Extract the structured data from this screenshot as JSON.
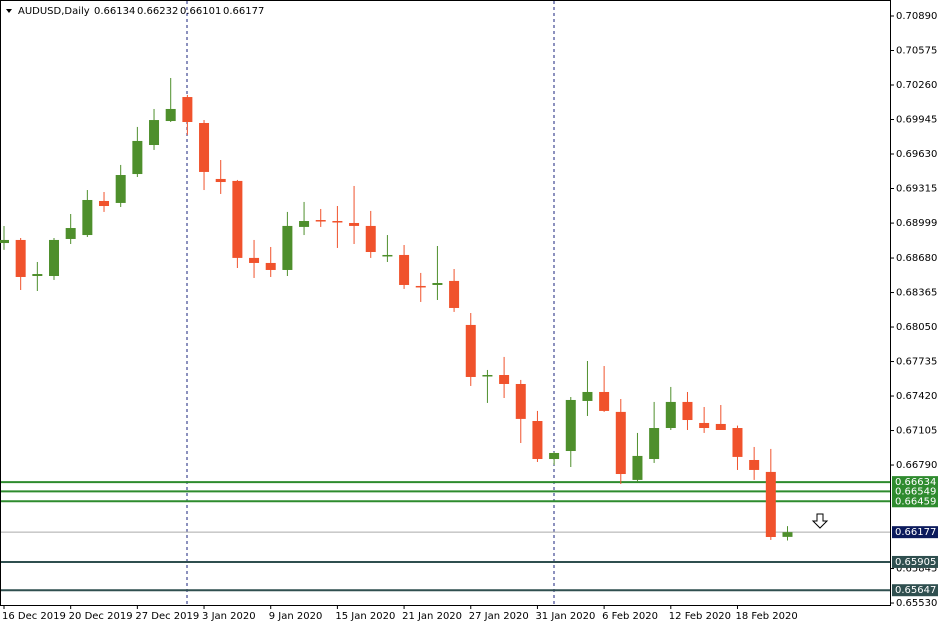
{
  "chart_data": {
    "type": "candlestick",
    "title": "AUDUSD,Daily",
    "header_values": [
      0.66134,
      0.66232,
      0.66101,
      0.66177
    ],
    "categories": [
      "16 Dec 2019",
      null,
      null,
      null,
      "20 Dec 2019",
      null,
      null,
      null,
      "27 Dec 2019",
      null,
      null,
      null,
      "3 Jan 2020",
      null,
      null,
      null,
      "9 Jan 2020",
      null,
      null,
      null,
      "15 Jan 2020",
      null,
      null,
      null,
      "21 Jan 2020",
      null,
      null,
      null,
      "27 Jan 2020",
      null,
      null,
      null,
      "31 Jan 2020",
      null,
      null,
      null,
      "6 Feb 2020",
      null,
      null,
      null,
      "12 Feb 2020",
      null,
      null,
      null,
      "18 Feb 2020",
      null,
      null,
      null
    ],
    "open": [
      0.68817,
      0.68845,
      0.68516,
      0.68516,
      0.68854,
      0.6889,
      0.69201,
      0.69183,
      0.69447,
      0.69712,
      0.69931,
      0.7015,
      0.69913,
      0.69402,
      0.69384,
      0.68681,
      0.68635,
      0.68571,
      0.68964,
      0.69027,
      0.69018,
      0.69,
      0.68973,
      0.68699,
      0.68708,
      0.68425,
      0.68434,
      0.68471,
      0.68069,
      0.67603,
      0.67612,
      0.6753,
      0.67192,
      0.66845,
      0.66918,
      0.67375,
      0.67457,
      0.67275,
      0.66654,
      0.66845,
      0.67128,
      0.67366,
      0.67174,
      0.67165,
      0.67128,
      0.66836,
      0.66727,
      0.66134
    ],
    "high": [
      0.68973,
      0.68863,
      0.68644,
      0.68863,
      0.69082,
      0.69301,
      0.69283,
      0.6953,
      0.69877,
      0.70041,
      0.70324,
      0.70169,
      0.6994,
      0.69575,
      0.69393,
      0.68845,
      0.68781,
      0.69101,
      0.69192,
      0.69128,
      0.69155,
      0.69338,
      0.6911,
      0.6889,
      0.68799,
      0.68544,
      0.6879,
      0.6858,
      0.68178,
      0.67658,
      0.67777,
      0.67567,
      0.67284,
      0.66909,
      0.67411,
      0.6774,
      0.67694,
      0.67393,
      0.67083,
      0.67366,
      0.67503,
      0.67457,
      0.6732,
      0.67338,
      0.6715,
      0.66955,
      0.66937,
      0.66232
    ],
    "low": [
      0.68754,
      0.68388,
      0.68379,
      0.6848,
      0.68808,
      0.68872,
      0.69101,
      0.69146,
      0.6942,
      0.69667,
      0.69922,
      0.69804,
      0.69301,
      0.69265,
      0.68589,
      0.68498,
      0.68507,
      0.68516,
      0.6889,
      0.68964,
      0.68772,
      0.68808,
      0.68681,
      0.68644,
      0.68398,
      0.68279,
      0.68297,
      0.68188,
      0.67512,
      0.67357,
      0.67402,
      0.66991,
      0.66818,
      0.66791,
      0.66772,
      0.67238,
      0.67275,
      0.66617,
      0.66635,
      0.66809,
      0.6711,
      0.6711,
      0.67083,
      0.6711,
      0.66745,
      0.66654,
      0.66106,
      0.66101
    ],
    "close": [
      0.68845,
      0.68507,
      0.68534,
      0.68845,
      0.68954,
      0.6921,
      0.69155,
      0.69438,
      0.69749,
      0.6994,
      0.70041,
      0.69922,
      0.69466,
      0.69374,
      0.68681,
      0.68635,
      0.68571,
      0.68973,
      0.69018,
      0.69018,
      0.69009,
      0.68973,
      0.68735,
      0.68708,
      0.68434,
      0.68416,
      0.68452,
      0.68224,
      0.67594,
      0.67612,
      0.6753,
      0.67211,
      0.66845,
      0.669,
      0.67384,
      0.67457,
      0.67284,
      0.66708,
      0.66873,
      0.67128,
      0.67366,
      0.67201,
      0.67128,
      0.6711,
      0.66864,
      0.66745,
      0.66133,
      0.66177
    ],
    "up_color": "#4e8f2c",
    "down_color": "#f0522c",
    "ylim": [
      0.65512,
      0.71036
    ],
    "yticks": [
      {
        "value": 0.7089,
        "label": "0.70890"
      },
      {
        "value": 0.70575,
        "label": "0.70575"
      },
      {
        "value": 0.7026,
        "label": "0.70260"
      },
      {
        "value": 0.69945,
        "label": "0.69945"
      },
      {
        "value": 0.6963,
        "label": "0.69630"
      },
      {
        "value": 0.69315,
        "label": "0.69315"
      },
      {
        "value": 0.68999,
        "label": "0.68999"
      },
      {
        "value": 0.6868,
        "label": "0.68680"
      },
      {
        "value": 0.68365,
        "label": "0.68365"
      },
      {
        "value": 0.6805,
        "label": "0.68050"
      },
      {
        "value": 0.67735,
        "label": "0.67735"
      },
      {
        "value": 0.6742,
        "label": "0.67420"
      },
      {
        "value": 0.67105,
        "label": "0.67105"
      },
      {
        "value": 0.6679,
        "label": "0.66790"
      },
      {
        "value": 0.65845,
        "label": "0.65845"
      },
      {
        "value": 0.6553,
        "label": "0.65530"
      }
    ],
    "levels": [
      {
        "value": 0.66634,
        "color": "#2e8b2e"
      },
      {
        "value": 0.66549,
        "color": "#2e8b2e"
      },
      {
        "value": 0.66459,
        "color": "#2e8b2e"
      },
      {
        "value": 0.65905,
        "color": "#2f4f4f"
      },
      {
        "value": 0.65647,
        "color": "#2f4f4f"
      }
    ],
    "current_price": 0.66177,
    "current_color": "#0b1a5c"
  }
}
